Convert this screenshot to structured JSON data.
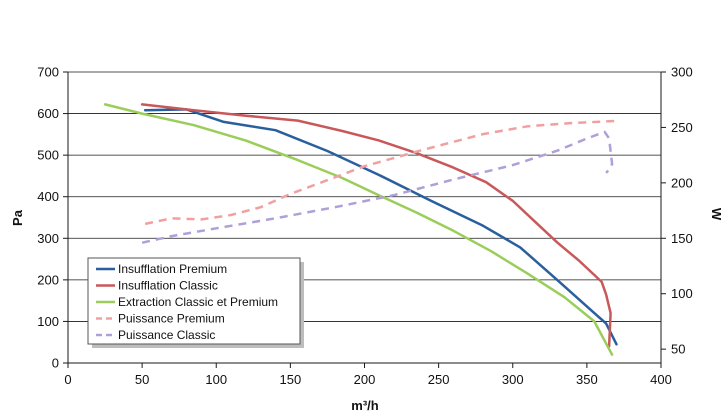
{
  "chart_data": {
    "type": "line",
    "xlabel": "m³/h",
    "ylabel": "Pa",
    "y2label": "W",
    "xlim": [
      0,
      400
    ],
    "ylim": [
      0,
      700
    ],
    "y2lim": [
      37.5,
      300
    ],
    "xticks": [
      "0",
      "50",
      "100",
      "150",
      "200",
      "250",
      "300",
      "350",
      "400"
    ],
    "yticks": [
      "0",
      "100",
      "200",
      "300",
      "400",
      "500",
      "600",
      "700"
    ],
    "y2ticks": [
      "50",
      "100",
      "150",
      "200",
      "250",
      "300"
    ],
    "grid": "horizontal",
    "legend_position": "bottom-left",
    "series": [
      {
        "name": "Insufflation Premium",
        "axis": "left",
        "color": "#2a5f9e",
        "dash": "solid",
        "x": [
          52,
          80,
          105,
          140,
          175,
          210,
          245,
          280,
          305,
          330,
          355,
          363,
          370
        ],
        "y": [
          608,
          610,
          580,
          560,
          510,
          452,
          390,
          330,
          278,
          200,
          120,
          95,
          45
        ]
      },
      {
        "name": "Insufflation Classic",
        "axis": "left",
        "color": "#c9585a",
        "dash": "solid",
        "x": [
          50,
          85,
          120,
          155,
          185,
          210,
          235,
          260,
          282,
          300,
          315,
          330,
          345,
          360,
          363,
          366,
          365
        ],
        "y": [
          622,
          608,
          595,
          583,
          558,
          535,
          505,
          470,
          435,
          390,
          340,
          290,
          245,
          195,
          165,
          120,
          40
        ]
      },
      {
        "name": "Extraction Classic et Premium",
        "axis": "left",
        "color": "#9acd5a",
        "dash": "solid",
        "x": [
          25,
          50,
          85,
          120,
          155,
          185,
          210,
          235,
          260,
          285,
          310,
          335,
          355,
          367
        ],
        "y": [
          622,
          600,
          572,
          535,
          488,
          445,
          403,
          362,
          318,
          270,
          215,
          158,
          100,
          20
        ]
      },
      {
        "name": "Puissance Premium",
        "axis": "right",
        "color": "#f0a0a0",
        "dash": "dash",
        "x": [
          52,
          70,
          90,
          110,
          130,
          150,
          170,
          200,
          240,
          280,
          310,
          340,
          372
        ],
        "y": [
          163,
          168,
          167,
          171,
          178,
          190,
          200,
          215,
          230,
          244,
          251,
          254,
          256
        ]
      },
      {
        "name": "Puissance Classic",
        "axis": "right",
        "color": "#b0a0d8",
        "dash": "dash",
        "x": [
          50,
          70,
          100,
          140,
          180,
          220,
          260,
          300,
          330,
          350,
          362,
          365,
          367,
          365,
          363
        ],
        "y": [
          146,
          152,
          159,
          168,
          178,
          189,
          203,
          216,
          229,
          240,
          246,
          240,
          217,
          212,
          209
        ]
      }
    ]
  }
}
